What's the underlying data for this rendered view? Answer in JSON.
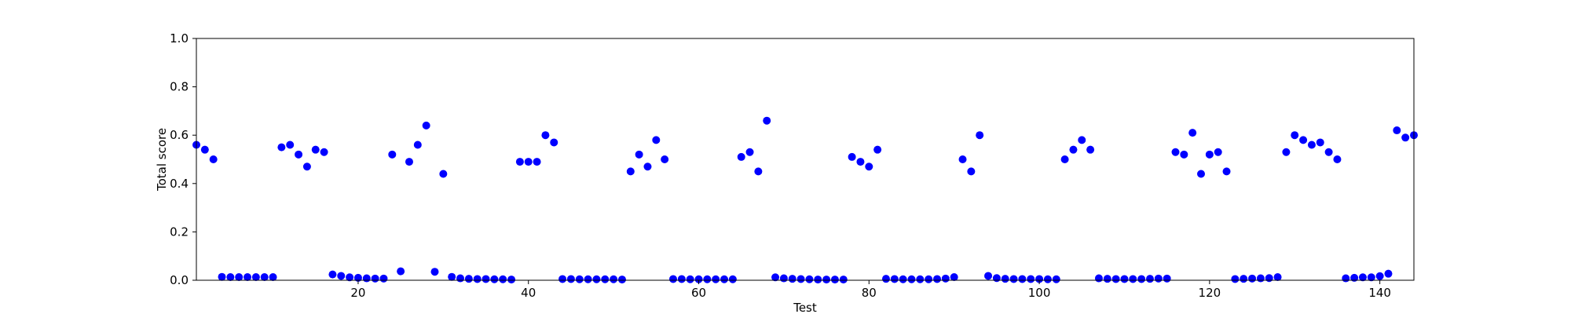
{
  "chart_data": {
    "type": "scatter",
    "xlabel": "Test",
    "ylabel": "Total score",
    "xlim": [
      1,
      144
    ],
    "ylim": [
      0,
      1.0
    ],
    "xticks": [
      20,
      40,
      60,
      80,
      100,
      120,
      140
    ],
    "xtick_labels": [
      "20",
      "40",
      "60",
      "80",
      "100",
      "120",
      "140"
    ],
    "yticks": [
      0,
      0.2,
      0.4,
      0.6,
      0.8,
      1.0
    ],
    "ytick_labels": [
      "0.0",
      "0.2",
      "0.4",
      "0.6",
      "0.8",
      "1.0"
    ],
    "grid": false,
    "marker_color": "#0000ff",
    "series": [
      {
        "x": [
          1,
          2,
          3,
          4,
          5,
          6,
          7,
          8,
          9,
          10,
          11,
          12,
          13,
          14,
          15,
          16,
          17,
          18,
          19,
          20,
          21,
          22,
          23,
          24,
          25,
          26,
          27,
          28,
          29,
          30,
          31,
          32,
          33,
          34,
          35,
          36,
          37,
          38,
          39,
          40,
          41,
          42,
          43,
          44,
          45,
          46,
          47,
          48,
          49,
          50,
          51,
          52,
          53,
          54,
          55,
          56,
          57,
          58,
          59,
          60,
          61,
          62,
          63,
          64,
          65,
          66,
          67,
          68,
          69,
          70,
          71,
          72,
          73,
          74,
          75,
          76,
          77,
          78,
          79,
          80,
          81,
          82,
          83,
          84,
          85,
          86,
          87,
          88,
          89,
          90,
          91,
          92,
          93,
          94,
          95,
          96,
          97,
          98,
          99,
          100,
          101,
          102,
          103,
          104,
          105,
          106,
          107,
          108,
          109,
          110,
          111,
          112,
          113,
          114,
          115,
          116,
          117,
          118,
          119,
          120,
          121,
          122,
          123,
          124,
          125,
          126,
          127,
          128,
          129,
          130,
          131,
          132,
          133,
          134,
          135,
          136,
          137,
          138,
          139,
          140,
          141,
          142,
          143,
          144
        ],
        "y": [
          0.56,
          0.54,
          0.5,
          0.014,
          0.013,
          0.013,
          0.013,
          0.013,
          0.013,
          0.013,
          0.55,
          0.56,
          0.52,
          0.47,
          0.54,
          0.53,
          0.024,
          0.018,
          0.012,
          0.01,
          0.008,
          0.007,
          0.007,
          0.52,
          0.037,
          0.49,
          0.56,
          0.64,
          0.035,
          0.44,
          0.014,
          0.008,
          0.006,
          0.005,
          0.005,
          0.004,
          0.004,
          0.003,
          0.49,
          0.49,
          0.49,
          0.6,
          0.57,
          0.005,
          0.005,
          0.004,
          0.004,
          0.004,
          0.004,
          0.004,
          0.003,
          0.45,
          0.52,
          0.47,
          0.58,
          0.5,
          0.005,
          0.005,
          0.004,
          0.004,
          0.004,
          0.004,
          0.004,
          0.004,
          0.51,
          0.53,
          0.45,
          0.66,
          0.012,
          0.008,
          0.006,
          0.005,
          0.004,
          0.003,
          0.003,
          0.003,
          0.003,
          0.51,
          0.49,
          0.47,
          0.54,
          0.006,
          0.005,
          0.004,
          0.004,
          0.004,
          0.004,
          0.005,
          0.007,
          0.013,
          0.5,
          0.45,
          0.6,
          0.018,
          0.009,
          0.006,
          0.005,
          0.005,
          0.005,
          0.005,
          0.004,
          0.004,
          0.5,
          0.54,
          0.58,
          0.54,
          0.008,
          0.006,
          0.005,
          0.005,
          0.005,
          0.005,
          0.006,
          0.007,
          0.007,
          0.53,
          0.52,
          0.61,
          0.44,
          0.52,
          0.53,
          0.45,
          0.005,
          0.006,
          0.007,
          0.008,
          0.009,
          0.013,
          0.53,
          0.6,
          0.58,
          0.56,
          0.57,
          0.53,
          0.5,
          0.008,
          0.01,
          0.012,
          0.012,
          0.017,
          0.027,
          0.62,
          0.59,
          0.6
        ]
      }
    ]
  }
}
